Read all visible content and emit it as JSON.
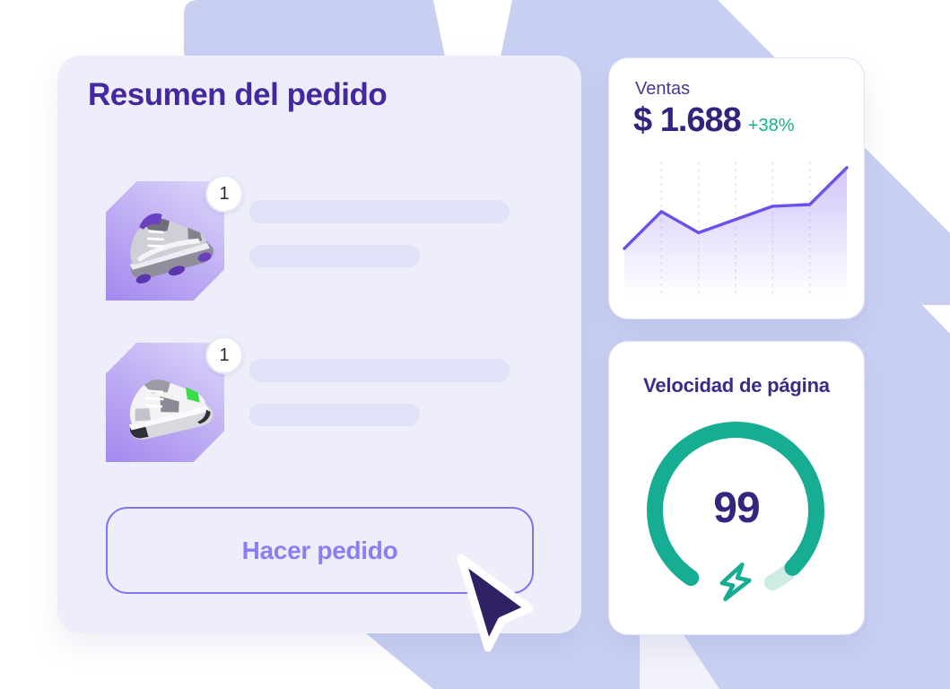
{
  "order_card": {
    "title": "Resumen del pedido",
    "items": [
      {
        "quantity": "1",
        "image": "sneaker-grey-purple"
      },
      {
        "quantity": "1",
        "image": "sneaker-white-green"
      }
    ],
    "button_label": "Hacer pedido"
  },
  "sales_card": {
    "label": "Ventas",
    "value": "$ 1.688",
    "delta": "+38%"
  },
  "speed_card": {
    "title": "Velocidad de página",
    "score": "99",
    "icon": "lightning-bolt-icon"
  },
  "colors": {
    "background_shape": "#c8d0f2",
    "order_card_bg": "#eeeefb",
    "title_purple": "#45289e",
    "placeholder_bar": "#e1e1f7",
    "button_border": "#8273f2",
    "button_text": "#8b7ef5",
    "chart_line": "#6d50e9",
    "chart_area": "#8c6ff0",
    "delta_green": "#12b48f",
    "gauge_teal": "#16ad92",
    "gauge_remainder": "#cdece4",
    "score_purple": "#35257e",
    "cursor_fill": "#2f2163"
  },
  "chart_data": [
    {
      "type": "area",
      "title": "Ventas",
      "x": [
        1,
        2,
        3,
        4,
        5,
        6,
        7
      ],
      "values": [
        55,
        97,
        73,
        88,
        103,
        105,
        147
      ],
      "ylim": [
        0,
        160
      ],
      "xlabel": "",
      "ylabel": "",
      "grid": "vertical-dashed",
      "gridline_count": 5,
      "legend": false
    },
    {
      "type": "gauge",
      "title": "Velocidad de página",
      "value": 99,
      "max": 100
    }
  ]
}
